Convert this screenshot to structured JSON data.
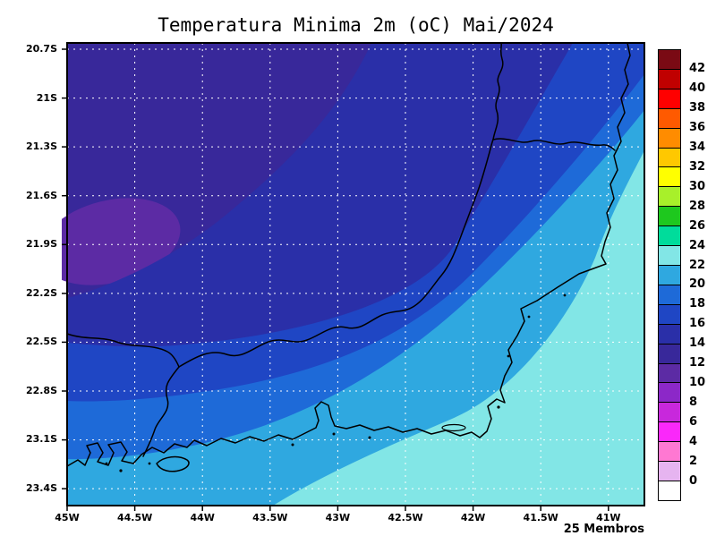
{
  "title": "Temperatura Minima 2m (oC) Mai/2024",
  "footer": {
    "members_label": "25 Membros"
  },
  "axes": {
    "lat_labels": [
      "20.7S",
      "21S",
      "21.3S",
      "21.6S",
      "21.9S",
      "22.2S",
      "22.5S",
      "22.8S",
      "23.1S",
      "23.4S"
    ],
    "lon_labels": [
      "45W",
      "44.5W",
      "44W",
      "43.5W",
      "43W",
      "42.5W",
      "42W",
      "41.5W",
      "41W"
    ]
  },
  "colorbar": {
    "labels": [
      "42",
      "40",
      "38",
      "36",
      "34",
      "32",
      "30",
      "28",
      "26",
      "24",
      "22",
      "20",
      "18",
      "16",
      "14",
      "12",
      "10",
      "8",
      "6",
      "4",
      "2",
      "0"
    ],
    "colors": [
      "#7a0a14",
      "#c00000",
      "#ff0000",
      "#ff5a00",
      "#ff8c00",
      "#ffc800",
      "#ffff00",
      "#a8f02a",
      "#1ec81e",
      "#00dc9b",
      "#82e6e6",
      "#2fa8e0",
      "#1e6ad8",
      "#1f46c4",
      "#2a2fa8",
      "#38289a",
      "#5c2ba4",
      "#8c28c8",
      "#c828dc",
      "#fa28fa",
      "#ff78d2",
      "#e6b4f0",
      "#ffffff"
    ]
  },
  "chart_data": {
    "type": "heatmap",
    "subtype": "filled_contour_map",
    "title": "Temperatura Minima 2m (oC) Mai/2024",
    "variable": "Temperatura Minima 2m",
    "units": "oC",
    "period": "Mai/2024",
    "ensemble_members": 25,
    "lat_ticks": [
      "20.7S",
      "21S",
      "21.3S",
      "21.6S",
      "21.9S",
      "22.2S",
      "22.5S",
      "22.8S",
      "23.1S",
      "23.4S"
    ],
    "lon_ticks": [
      "45W",
      "44.5W",
      "44W",
      "43.5W",
      "43W",
      "42.5W",
      "42W",
      "41.5W",
      "41W"
    ],
    "contour_interval_c": 2,
    "levels_c": [
      0,
      2,
      4,
      6,
      8,
      10,
      12,
      14,
      16,
      18,
      20,
      22,
      24,
      26,
      28,
      30,
      32,
      34,
      36,
      38,
      40,
      42
    ],
    "value_range_shown_c": [
      10,
      24
    ],
    "grid": "dashed white graticule every 0.5 deg lon / 0.3 deg lat",
    "legend_position": "right vertical colorbar",
    "spatial_pattern": [
      {
        "range_c": [
          10,
          12
        ],
        "area": "small purple patch near 44.8W 21.9S (NW highlands)"
      },
      {
        "range_c": [
          12,
          14
        ],
        "area": "northwest interior (dark blue-purple)"
      },
      {
        "range_c": [
          14,
          16
        ],
        "area": "central and northern interior (dark blue)"
      },
      {
        "range_c": [
          16,
          18
        ],
        "area": "inland band trending SW-NE toward top-right corner"
      },
      {
        "range_c": [
          18,
          20
        ],
        "area": "band nearer the coast and along upper right edge"
      },
      {
        "range_c": [
          20,
          22
        ],
        "area": "narrow strip along coast and lower-left bays"
      },
      {
        "range_c": [
          22,
          24
        ],
        "area": "immediate coastline and ocean in the southeast (light cyan)"
      }
    ],
    "map_overlay": "black state borders and coastline of Rio de Janeiro / SP / MG / ES region"
  }
}
